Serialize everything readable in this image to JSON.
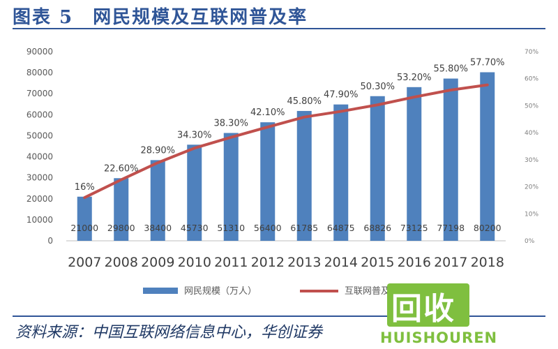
{
  "header": {
    "title": "图表 5　网民规模及互联网普及率"
  },
  "chart_data": {
    "type": "bar",
    "categories": [
      "2007",
      "2008",
      "2009",
      "2010",
      "2011",
      "2012",
      "2013",
      "2014",
      "2015",
      "2016",
      "2017",
      "2018"
    ],
    "series": [
      {
        "name": "网民规模（万人）",
        "type": "bar",
        "axis": "left",
        "values": [
          21000,
          29800,
          38400,
          45730,
          51310,
          56400,
          61785,
          64875,
          68826,
          73125,
          77198,
          80200
        ],
        "labels": [
          "21000",
          "29800",
          "38400",
          "45730",
          "51310",
          "56400",
          "61785",
          "64875",
          "68826",
          "73125",
          "77198",
          "80200"
        ],
        "color": "#4f81bd"
      },
      {
        "name": "互联网普及率",
        "type": "line",
        "axis": "right",
        "values": [
          16,
          22.6,
          28.9,
          34.3,
          38.3,
          42.1,
          45.8,
          47.9,
          50.3,
          53.2,
          55.8,
          57.7
        ],
        "labels": [
          "16%",
          "22.60%",
          "28.90%",
          "34.30%",
          "38.30%",
          "42.10%",
          "45.80%",
          "47.90%",
          "50.30%",
          "53.20%",
          "55.80%",
          "57.70%"
        ],
        "color": "#c0504d"
      }
    ],
    "y_left": {
      "ylim": [
        0,
        90000
      ],
      "ticks": [
        "0",
        "10000",
        "20000",
        "30000",
        "40000",
        "50000",
        "60000",
        "70000",
        "80000",
        "90000"
      ]
    },
    "y_right": {
      "ylim": [
        0,
        70
      ],
      "ticks": [
        "0%",
        "10%",
        "20%",
        "30%",
        "40%",
        "50%",
        "60%",
        "70%"
      ]
    },
    "legend_position": "bottom",
    "grid": false
  },
  "footer": {
    "source": "资料来源：中国互联网络信息中心，华创证券"
  },
  "watermark": {
    "text": "回收",
    "latin": "HUISHOUREN"
  }
}
